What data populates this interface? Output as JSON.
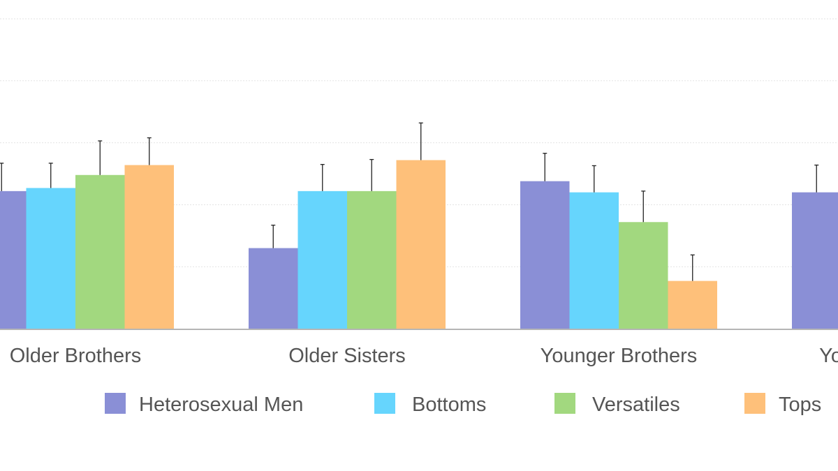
{
  "chart_data": {
    "type": "bar",
    "categories": [
      "Older Brothers",
      "Older Sisters",
      "Younger Brothers",
      "Younger Sisters"
    ],
    "series": [
      {
        "name": "Heterosexual Men",
        "color": "#8a8fd6",
        "values": [
          2.22,
          1.3,
          2.38,
          2.2
        ],
        "errors": [
          0.45,
          0.37,
          0.45,
          0.44
        ]
      },
      {
        "name": "Bottoms",
        "color": "#66d5fd",
        "values": [
          2.27,
          2.22,
          2.2,
          null
        ],
        "errors": [
          0.4,
          0.43,
          0.43,
          null
        ]
      },
      {
        "name": "Versatiles",
        "color": "#a2d87f",
        "values": [
          2.48,
          2.22,
          1.72,
          null
        ],
        "errors": [
          0.55,
          0.51,
          0.5,
          null
        ]
      },
      {
        "name": "Tops",
        "color": "#fec07a",
        "values": [
          2.64,
          2.72,
          0.77,
          null
        ],
        "errors": [
          0.44,
          0.6,
          0.42,
          null
        ]
      }
    ],
    "ylim": [
      0,
      5
    ],
    "grid": true,
    "legend": "bottom",
    "axis_color": "#b5b5b5",
    "grid_color": "#e3e3e3"
  }
}
